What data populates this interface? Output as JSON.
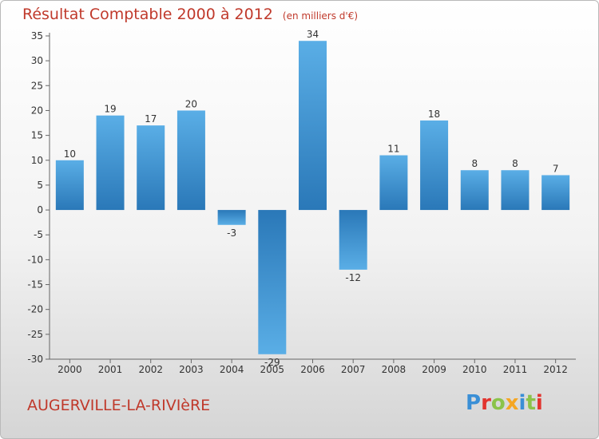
{
  "title": "Résultat Comptable 2000 à 2012",
  "title_unit": "(en milliers d'€)",
  "commune": "AUGERVILLE-LA-RIVIèRE",
  "logo": {
    "text": "Proxiti",
    "letters": [
      {
        "ch": "P",
        "color": "#3a8fd6"
      },
      {
        "ch": "r",
        "color": "#e2342e"
      },
      {
        "ch": "o",
        "color": "#8bc34a"
      },
      {
        "ch": "x",
        "color": "#f5a623"
      },
      {
        "ch": "i",
        "color": "#3a8fd6"
      },
      {
        "ch": "t",
        "color": "#8bc34a"
      },
      {
        "ch": "i",
        "color": "#e2342e"
      }
    ]
  },
  "colors": {
    "title": "#c0392b",
    "bar_light": "#5aaee6",
    "bar_dark": "#2a78b8"
  },
  "chart_data": {
    "type": "bar",
    "title": "Résultat Comptable 2000 à 2012",
    "xlabel": "",
    "ylabel": "",
    "categories": [
      "2000",
      "2001",
      "2002",
      "2003",
      "2004",
      "2005",
      "2006",
      "2007",
      "2008",
      "2009",
      "2010",
      "2011",
      "2012"
    ],
    "values": [
      10,
      19,
      17,
      20,
      -3,
      -29,
      34,
      -12,
      11,
      18,
      8,
      8,
      7
    ],
    "labels": [
      "10",
      "19",
      "17",
      "20",
      "-3",
      "-29",
      "34",
      "-12",
      "11",
      "18",
      "8",
      "8",
      "7"
    ],
    "ylim": [
      -30,
      35
    ],
    "yticks": [
      35,
      30,
      25,
      20,
      15,
      10,
      5,
      0,
      -5,
      -10,
      -15,
      -20,
      -25,
      -30
    ],
    "grid": false,
    "legend": "none"
  }
}
